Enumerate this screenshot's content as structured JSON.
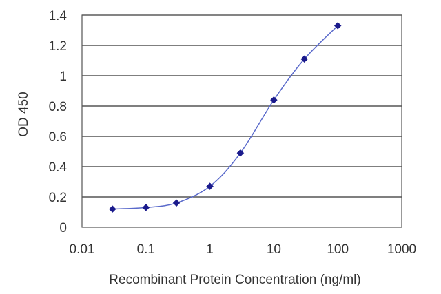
{
  "chart_data": {
    "type": "line",
    "xlabel": "Recombinant Protein Concentration (ng/ml)",
    "ylabel": "OD 450",
    "x_scale": "log",
    "xlim": [
      0.01,
      1000
    ],
    "ylim": [
      0,
      1.4
    ],
    "x_ticks": [
      "0.01",
      "0.1",
      "1",
      "10",
      "100",
      "1000"
    ],
    "y_ticks": [
      "0",
      "0.2",
      "0.4",
      "0.6",
      "0.8",
      "1",
      "1.2",
      "1.4"
    ],
    "grid": "horizontal",
    "series": [
      {
        "x": [
          0.03,
          0.1,
          0.3,
          1,
          3,
          10,
          30,
          100
        ],
        "y": [
          0.12,
          0.13,
          0.16,
          0.27,
          0.49,
          0.84,
          1.11,
          1.33
        ],
        "color": "#1a1a8c",
        "line_color": "#5a6acb"
      }
    ],
    "plot_background": "#ffffff",
    "grid_color": "#333333"
  }
}
